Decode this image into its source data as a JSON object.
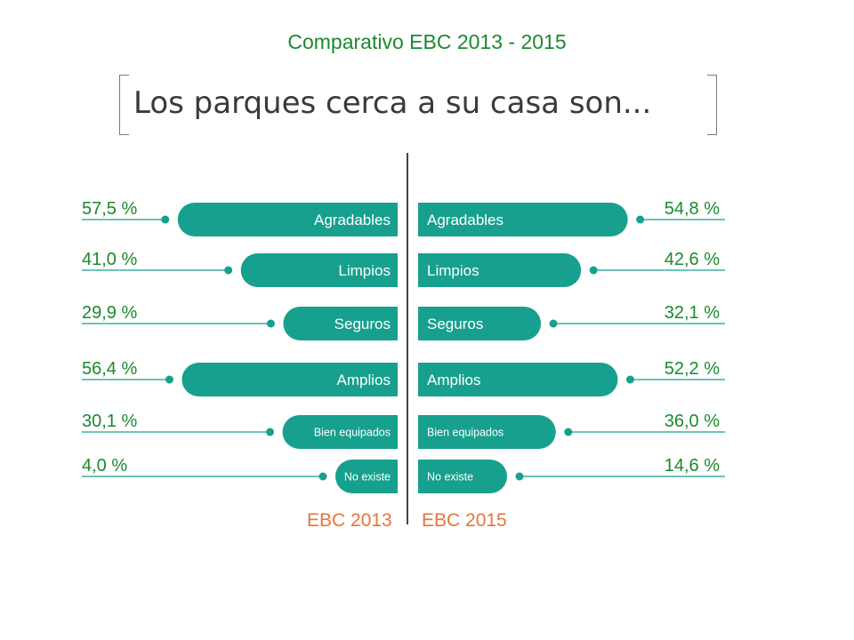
{
  "slide": {
    "title": "Comparativo EBC 2013 - 2015",
    "question": "Los parques cerca a su casa son..."
  },
  "colors": {
    "bar": "#17a08e",
    "value_text": "#1a8a2e",
    "year_text": "#e8743b",
    "bar_text": "#ffffff"
  },
  "chart_data": {
    "type": "bar",
    "categories": [
      "Agradables",
      "Limpios",
      "Seguros",
      "Amplios",
      "Bien equipados",
      "No existe"
    ],
    "series": [
      {
        "name": "EBC 2013",
        "values": [
          57.5,
          41.0,
          29.9,
          56.4,
          30.1,
          4.0
        ],
        "value_labels": [
          "57,5 %",
          "41,0 %",
          "29,9 %",
          "56,4 %",
          "30,1 %",
          "4,0 %"
        ]
      },
      {
        "name": "EBC 2015",
        "values": [
          54.8,
          42.6,
          32.1,
          52.2,
          36.0,
          14.6
        ],
        "value_labels": [
          "54,8 %",
          "42,6 %",
          "32,1 %",
          "52,2 %",
          "36,0 %",
          "14,6 %"
        ]
      }
    ]
  }
}
